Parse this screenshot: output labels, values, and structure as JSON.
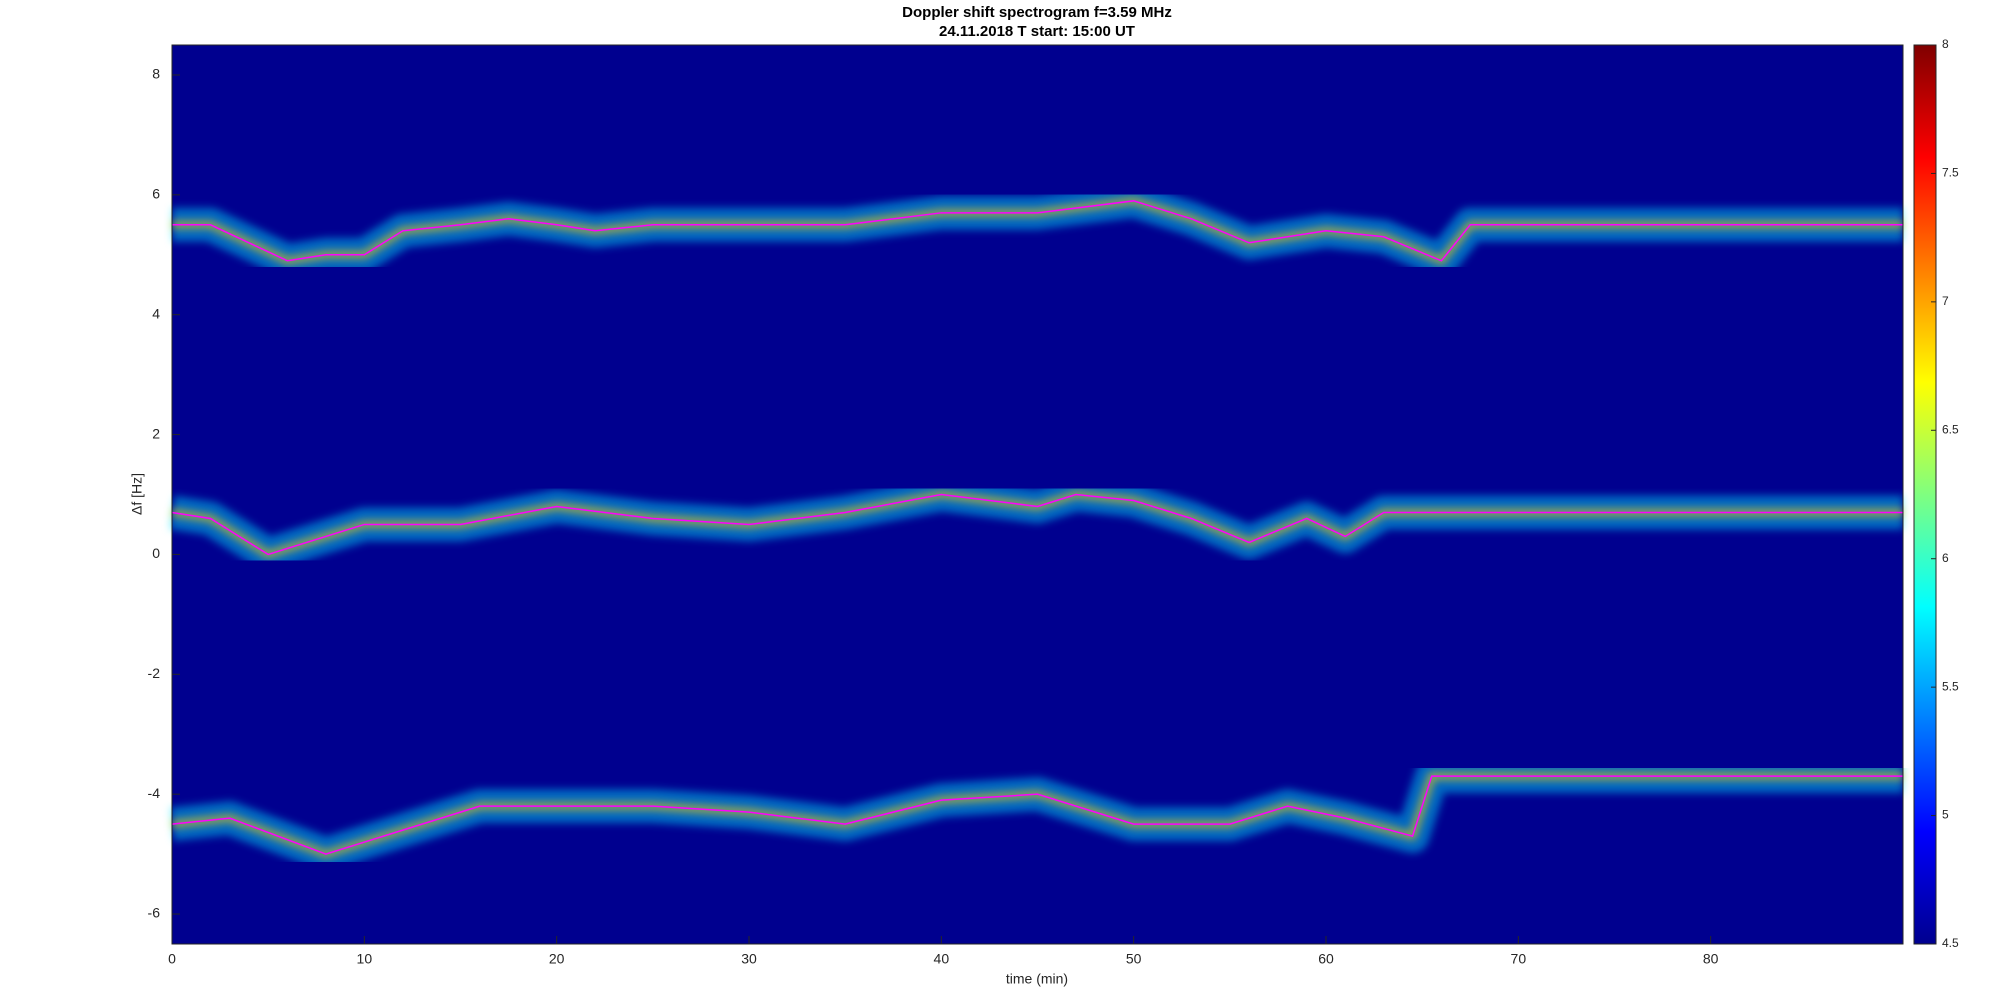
{
  "chart_data": {
    "type": "line",
    "title": "Doppler shift spectrogram f=3.59 MHz",
    "subtitle": "24.11.2018   T start: 15:00 UT",
    "x_label": "time (min)",
    "y_label": "Δf [Hz]",
    "xlim": [
      0,
      90
    ],
    "xticks": [
      0,
      10,
      20,
      30,
      40,
      50,
      60,
      70,
      80
    ],
    "ylim": [
      -6.5,
      8.5
    ],
    "yticks": [
      -6,
      -4,
      -2,
      0,
      2,
      4,
      6,
      8
    ],
    "clim": [
      4.5,
      8
    ],
    "cticks": [
      4.5,
      5,
      5.5,
      6,
      6.5,
      7,
      7.5,
      8
    ],
    "background": "#00008f",
    "series": [
      {
        "color": "#ff00ff",
        "x": [
          0,
          2,
          4,
          6,
          8,
          10,
          12,
          15,
          17.5,
          20,
          22,
          25,
          30,
          35,
          40,
          45,
          50,
          53,
          56,
          60,
          63,
          66,
          67.5,
          75,
          90
        ],
        "values": [
          5.5,
          5.5,
          5.2,
          4.9,
          5.0,
          5.0,
          5.4,
          5.5,
          5.6,
          5.5,
          5.4,
          5.5,
          5.5,
          5.5,
          5.7,
          5.7,
          5.9,
          5.6,
          5.2,
          5.4,
          5.3,
          4.9,
          5.5,
          5.5,
          5.5
        ]
      },
      {
        "color": "#ff00ff",
        "x": [
          0,
          2,
          5,
          8,
          10,
          15,
          20,
          25,
          30,
          35,
          40,
          45,
          47,
          50,
          53,
          56,
          59,
          61,
          63,
          70,
          90
        ],
        "values": [
          0.7,
          0.6,
          0.0,
          0.3,
          0.5,
          0.5,
          0.8,
          0.6,
          0.5,
          0.7,
          1.0,
          0.8,
          1.0,
          0.9,
          0.6,
          0.2,
          0.6,
          0.3,
          0.7,
          0.7,
          0.7
        ]
      },
      {
        "color": "#ff00ff",
        "x": [
          0,
          3,
          8,
          12,
          16,
          20,
          25,
          30,
          35,
          40,
          45,
          50,
          55,
          58,
          61,
          64.5,
          65.5,
          75,
          90
        ],
        "values": [
          -4.5,
          -4.4,
          -5.0,
          -4.6,
          -4.2,
          -4.2,
          -4.2,
          -4.3,
          -4.5,
          -4.1,
          -4.0,
          -4.5,
          -4.5,
          -4.2,
          -4.4,
          -4.7,
          -3.7,
          -3.7,
          -3.7
        ]
      }
    ]
  }
}
